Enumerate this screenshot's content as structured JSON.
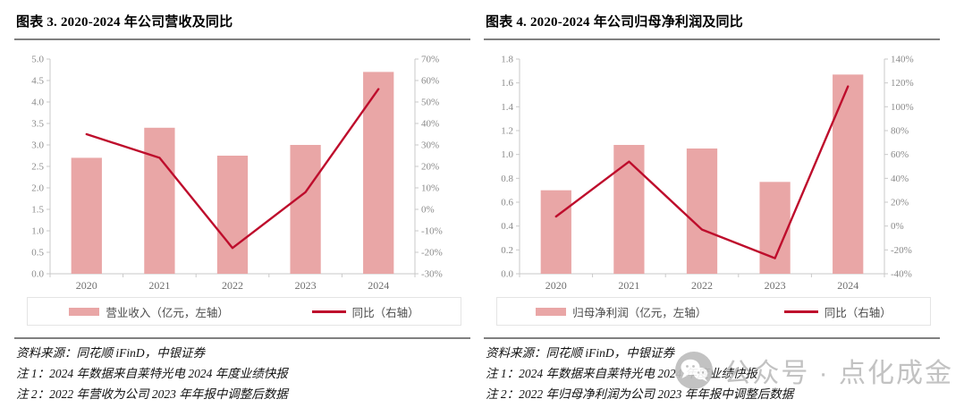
{
  "colors": {
    "bar_fill": "#E9A6A6",
    "line_red": "#BE0D2C",
    "axis_gray": "#C9C9C9",
    "tick_label_gray": "#8A8A8A",
    "year_label_gray": "#6E6E6E",
    "rule_gray": "#808080",
    "watermark_gray": "#C2C2C2"
  },
  "figures": [
    {
      "source": "资料来源：同花顺 iFinD，中银证券",
      "note1": "注 1：2024 年数据来自莱特光电 2024 年度业绩快报",
      "note2": "注 2：2022 年营收为公司 2023 年年报中调整后数据"
    },
    {
      "source": "资料来源：同花顺 iFinD，中银证券",
      "note1": "注 1：2024 年数据来自莱特光电 2024 年度业绩快报",
      "note2": "注 2：2022 年归母净利润为公司 2023 年年报中调整后数据"
    }
  ],
  "watermark": {
    "icon": "wechat-official-account-icon",
    "label": "公众号 · 点化成金"
  },
  "chart_data": [
    {
      "type": "bar+line dual-axis",
      "title": "图表 3. 2020-2024 年公司营收及同比",
      "categories": [
        "2020",
        "2021",
        "2022",
        "2023",
        "2024"
      ],
      "series": [
        {
          "name": "营业收入（亿元，左轴）",
          "type": "bar",
          "axis": "left",
          "color": "#E9A6A6",
          "values": [
            2.7,
            3.4,
            2.75,
            3.0,
            4.7
          ]
        },
        {
          "name": "同比（右轴）",
          "type": "line",
          "axis": "right",
          "unit": "%",
          "color": "#BE0D2C",
          "values": [
            35,
            24,
            -18,
            8,
            56
          ]
        }
      ],
      "left_axis": {
        "min": 0,
        "max": 5.0,
        "step": 0.5,
        "decimals": 1
      },
      "right_axis": {
        "min": -30,
        "max": 70,
        "step": 10,
        "suffix": "%"
      },
      "grid": false,
      "legend_position": "bottom"
    },
    {
      "type": "bar+line dual-axis",
      "title": "图表 4. 2020-2024 年公司归母净利润及同比",
      "categories": [
        "2020",
        "2021",
        "2022",
        "2023",
        "2024"
      ],
      "series": [
        {
          "name": "归母净利润（亿元，左轴）",
          "type": "bar",
          "axis": "left",
          "color": "#E9A6A6",
          "values": [
            0.7,
            1.08,
            1.05,
            0.77,
            1.67
          ]
        },
        {
          "name": "同比（右轴）",
          "type": "line",
          "axis": "right",
          "unit": "%",
          "color": "#BE0D2C",
          "values": [
            8,
            54,
            -3,
            -27,
            117
          ]
        }
      ],
      "left_axis": {
        "min": 0,
        "max": 1.8,
        "step": 0.2,
        "decimals": 1
      },
      "right_axis": {
        "min": -40,
        "max": 140,
        "step": 20,
        "suffix": "%"
      },
      "grid": false,
      "legend_position": "bottom"
    }
  ]
}
